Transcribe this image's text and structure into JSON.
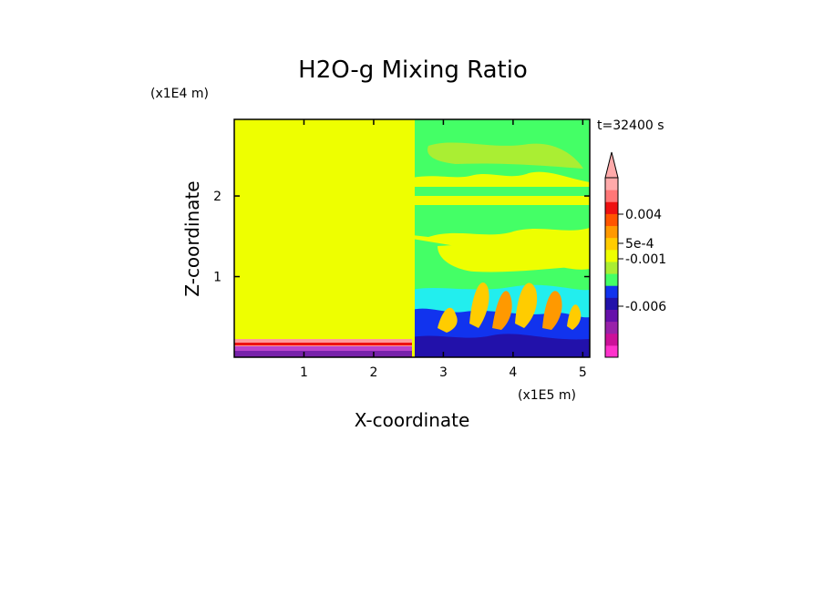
{
  "chart_data": {
    "type": "heatmap",
    "title": "H2O-g Mixing Ratio",
    "xlabel": "X-coordinate",
    "ylabel": "Z-coordinate",
    "x_scale_label": "(x1E5 m)",
    "y_scale_label": "(x1E4 m)",
    "time_label": "t=32400 s",
    "x_ticks": [
      1,
      2,
      3,
      4,
      5
    ],
    "y_ticks": [
      1,
      2
    ],
    "xlim": [
      0,
      5.1
    ],
    "ylim": [
      0,
      2.95
    ],
    "colorbar": {
      "colors": [
        "#ff33cc",
        "#cc1199",
        "#9922aa",
        "#6611aa",
        "#2211aa",
        "#1133ee",
        "#44ff66",
        "#aaee33",
        "#eeff00",
        "#ffcc00",
        "#ff9900",
        "#ff5500",
        "#ee1111",
        "#ff7777",
        "#ffaaaa"
      ],
      "extend_top": true,
      "tick_labels": [
        "0.004",
        "5e-4",
        "-0.001",
        "-0.006"
      ]
    }
  }
}
